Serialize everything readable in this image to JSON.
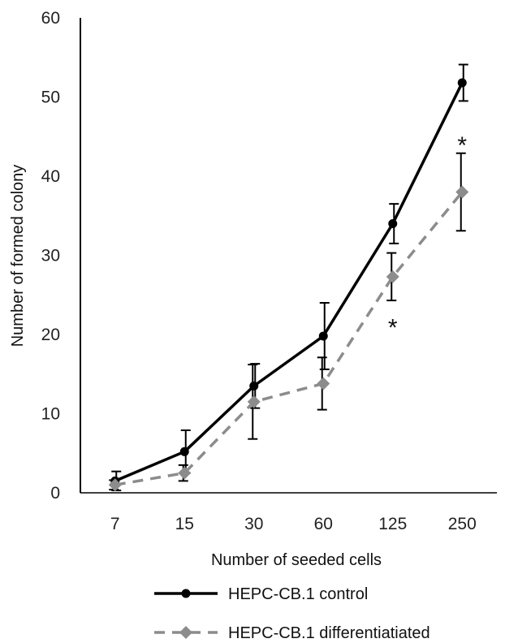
{
  "chart_data": {
    "type": "line",
    "xlabel": "Number of seeded cells",
    "ylabel": "Number of formed colony",
    "ylim": [
      0,
      60
    ],
    "yticks": [
      0,
      10,
      20,
      30,
      40,
      50,
      60
    ],
    "categories": [
      "7",
      "15",
      "30",
      "60",
      "125",
      "250"
    ],
    "series": [
      {
        "name": "HEPC-CB.1 control",
        "values": [
          1.5,
          5.2,
          13.5,
          19.8,
          34.0,
          51.8
        ],
        "errors": [
          1.2,
          2.7,
          2.8,
          4.2,
          2.5,
          2.3
        ],
        "color": "#000000",
        "marker": "circle",
        "dash": "solid"
      },
      {
        "name": "HEPC-CB.1 differentiatiated",
        "values": [
          1.0,
          2.5,
          11.5,
          13.8,
          27.3,
          38.0
        ],
        "errors": [
          0.6,
          1.0,
          4.7,
          3.3,
          3.0,
          4.9
        ],
        "color": "#8c8c8c",
        "marker": "diamond",
        "dash": "dashed"
      }
    ],
    "annotations": [
      {
        "text": "*",
        "category": "125",
        "value": 21.5
      },
      {
        "text": "*",
        "category": "250",
        "value": 44.5
      }
    ],
    "legend": "bottom",
    "grid": false
  }
}
